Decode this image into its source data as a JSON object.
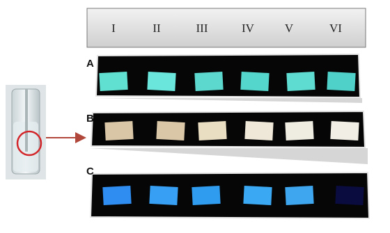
{
  "columns": [
    "I",
    "II",
    "III",
    "IV",
    "V",
    "VI"
  ],
  "rows": [
    {
      "label": "A"
    },
    {
      "label": "B"
    },
    {
      "label": "C"
    }
  ]
}
